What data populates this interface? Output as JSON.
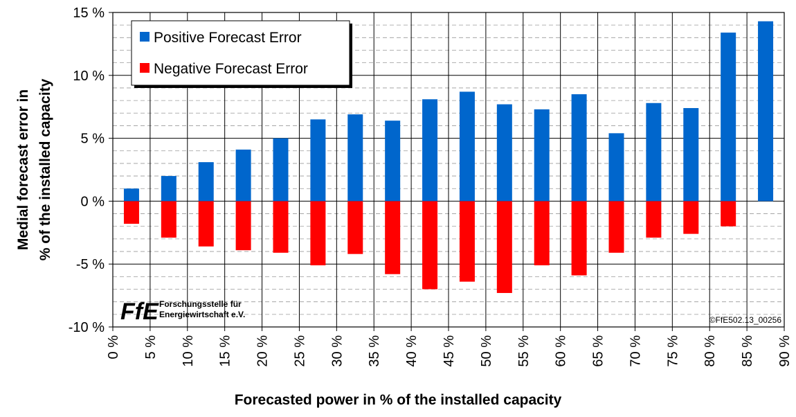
{
  "chart_data": {
    "type": "bar",
    "y_label": [
      "Medial forecast error in",
      "% of the installed capacity"
    ],
    "x_label": "Forecasted power in % of the installed capacity",
    "x": [
      2.5,
      7.5,
      12.5,
      17.5,
      22.5,
      27.5,
      32.5,
      37.5,
      42.5,
      47.5,
      52.5,
      57.5,
      62.5,
      67.5,
      72.5,
      77.5,
      82.5,
      87.5
    ],
    "series": [
      {
        "name": "Positive Forecast Error",
        "color": "#0066cc",
        "values": [
          1.0,
          2.0,
          3.1,
          4.1,
          5.0,
          6.5,
          6.9,
          6.4,
          8.1,
          8.7,
          7.7,
          7.3,
          8.5,
          5.4,
          7.8,
          7.4,
          13.4,
          14.3
        ]
      },
      {
        "name": "Negative Forecast Error",
        "color": "#ff0000",
        "values": [
          -1.8,
          -2.9,
          -3.6,
          -3.9,
          -4.1,
          -5.1,
          -4.2,
          -5.8,
          -7.0,
          -6.4,
          -7.3,
          -5.1,
          -5.9,
          -4.1,
          -2.9,
          -2.6,
          -2.0,
          null
        ]
      }
    ],
    "xlim": [
      0,
      90
    ],
    "xticks": [
      {
        "value": 0,
        "label": "0 %"
      },
      {
        "value": 5,
        "label": "5 %"
      },
      {
        "value": 10,
        "label": "10 %"
      },
      {
        "value": 15,
        "label": "15 %"
      },
      {
        "value": 20,
        "label": "20 %"
      },
      {
        "value": 25,
        "label": "25 %"
      },
      {
        "value": 30,
        "label": "30 %"
      },
      {
        "value": 35,
        "label": "35 %"
      },
      {
        "value": 40,
        "label": "40 %"
      },
      {
        "value": 45,
        "label": "45 %"
      },
      {
        "value": 50,
        "label": "50 %"
      },
      {
        "value": 55,
        "label": "55 %"
      },
      {
        "value": 60,
        "label": "60 %"
      },
      {
        "value": 65,
        "label": "65 %"
      },
      {
        "value": 70,
        "label": "70 %"
      },
      {
        "value": 75,
        "label": "75 %"
      },
      {
        "value": 80,
        "label": "80 %"
      },
      {
        "value": 85,
        "label": "85 %"
      },
      {
        "value": 90,
        "label": "90 %"
      }
    ],
    "ylim": [
      -10,
      15
    ],
    "yticks": [
      {
        "value": -10,
        "label": "-10 %"
      },
      {
        "value": -5,
        "label": "-5 %"
      },
      {
        "value": 0,
        "label": "0 %"
      },
      {
        "value": 5,
        "label": "5 %"
      },
      {
        "value": 10,
        "label": "10 %"
      },
      {
        "value": 15,
        "label": "15 %"
      }
    ],
    "grid": true,
    "legend": "upper left",
    "logo": {
      "mark": "FfE",
      "lines": [
        "Forschungsstelle für",
        "Energiewirtschaft e.V."
      ]
    },
    "annotation": "©FfE502.13_00256"
  }
}
